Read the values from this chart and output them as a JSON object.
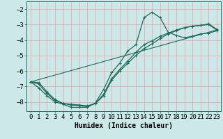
{
  "xlabel": "Humidex (Indice chaleur)",
  "bg_color": "#cde8e8",
  "line_color": "#1a6b5a",
  "grid_color": "#f0a0a0",
  "xlim": [
    -0.5,
    23.5
  ],
  "ylim": [
    -8.6,
    -1.5
  ],
  "xticks": [
    0,
    1,
    2,
    3,
    4,
    5,
    6,
    7,
    8,
    9,
    10,
    11,
    12,
    13,
    14,
    15,
    16,
    17,
    18,
    19,
    20,
    21,
    22,
    23
  ],
  "yticks": [
    -8,
    -7,
    -6,
    -5,
    -4,
    -3,
    -2
  ],
  "line1_x": [
    0,
    1,
    2,
    3,
    4,
    5,
    6,
    7,
    8,
    9,
    10,
    11,
    12,
    13,
    14,
    15,
    16,
    17,
    18,
    19,
    20,
    21,
    22,
    23
  ],
  "line1_y": [
    -6.7,
    -7.1,
    -7.6,
    -8.0,
    -8.15,
    -8.35,
    -8.35,
    -8.35,
    -8.05,
    -7.2,
    -6.1,
    -5.5,
    -4.7,
    -4.3,
    -2.55,
    -2.2,
    -2.55,
    -3.5,
    -3.7,
    -3.85,
    -3.75,
    -3.6,
    -3.55,
    -3.4
  ],
  "line2_x": [
    0,
    1,
    2,
    3,
    4,
    5,
    6,
    7,
    8,
    9,
    10,
    11,
    12,
    13,
    14,
    15,
    16,
    17,
    18,
    19,
    20,
    21,
    22,
    23
  ],
  "line2_y": [
    -6.7,
    -6.75,
    -7.35,
    -7.85,
    -8.1,
    -8.15,
    -8.2,
    -8.25,
    -8.1,
    -7.6,
    -6.6,
    -6.0,
    -5.5,
    -5.0,
    -4.55,
    -4.25,
    -3.9,
    -3.6,
    -3.4,
    -3.2,
    -3.1,
    -3.05,
    -3.0,
    -3.35
  ],
  "line3_x": [
    0,
    1,
    2,
    3,
    4,
    5,
    6,
    7,
    8,
    9,
    10,
    11,
    12,
    13,
    14,
    15,
    16,
    17,
    18,
    19,
    20,
    21,
    22,
    23
  ],
  "line3_y": [
    -6.7,
    -6.85,
    -7.45,
    -7.9,
    -8.1,
    -8.2,
    -8.25,
    -8.3,
    -8.1,
    -7.5,
    -6.5,
    -5.9,
    -5.35,
    -4.8,
    -4.3,
    -4.05,
    -3.75,
    -3.55,
    -3.35,
    -3.2,
    -3.1,
    -3.05,
    -2.95,
    -3.3
  ],
  "line4_x": [
    0,
    23
  ],
  "line4_y": [
    -6.7,
    -3.35
  ],
  "fontsize_label": 7,
  "fontsize_tick": 6.5,
  "marker": "+"
}
